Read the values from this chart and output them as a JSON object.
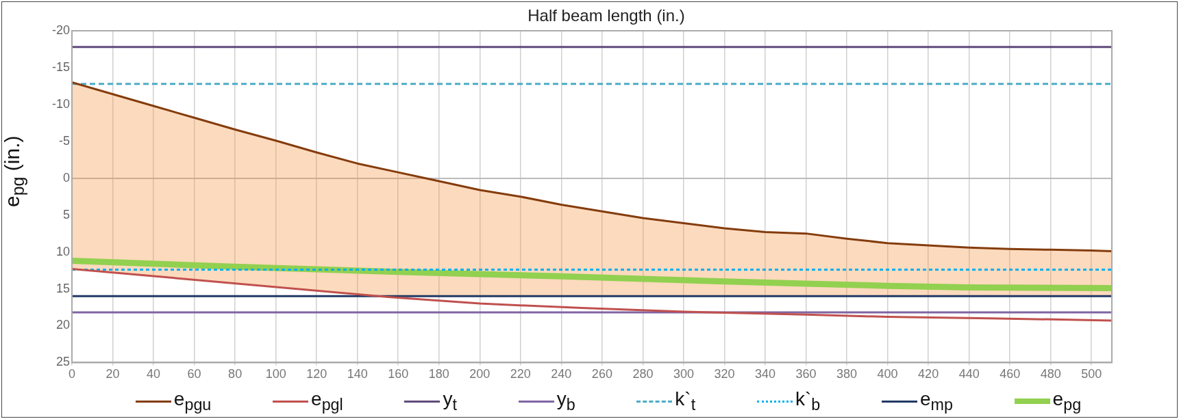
{
  "chart_data": {
    "type": "line",
    "xlabel": "Half beam length (in.)",
    "ylabel": "e$_{pg}$ (in.)",
    "xlim": [
      0,
      510
    ],
    "xticks": [
      0,
      20,
      40,
      60,
      80,
      100,
      120,
      140,
      160,
      180,
      200,
      220,
      240,
      260,
      280,
      300,
      320,
      340,
      360,
      380,
      400,
      420,
      440,
      460,
      480,
      500
    ],
    "ylim": [
      25,
      -20
    ],
    "yticks": [
      -20,
      -15,
      -10,
      -5,
      0,
      5,
      10,
      15,
      20,
      25
    ],
    "grid": "x",
    "legend": "bottom",
    "marker": "none",
    "series": [
      {
        "name": "e$_{pgu}$",
        "color": "#843c0c",
        "x": [
          0,
          20,
          40,
          60,
          80,
          100,
          120,
          140,
          160,
          180,
          200,
          220,
          240,
          260,
          280,
          300,
          320,
          340,
          360,
          380,
          400,
          420,
          440,
          460,
          480,
          500,
          510
        ],
        "values": [
          -13,
          -11.4,
          -9.8,
          -8.2,
          -6.6,
          -5.1,
          -3.5,
          -2,
          -0.8,
          0.4,
          1.6,
          2.5,
          3.6,
          4.5,
          5.4,
          6.1,
          6.8,
          7.3,
          7.5,
          8.2,
          8.8,
          9.1,
          9.4,
          9.6,
          9.7,
          9.8,
          9.9
        ],
        "upper": [
          -13,
          -11.4,
          -9.8,
          -8.2,
          -6.6,
          -5.1,
          -3.5,
          -2,
          -0.8,
          0.4,
          1.6,
          2.5,
          3.6,
          4.5,
          5.4,
          6.1,
          6.8,
          7.3,
          7.5,
          8.2,
          8.8,
          9.1,
          9.4,
          9.6,
          9.7,
          9.8,
          9.9
        ],
        "lower": [
          12.3,
          12.8,
          13.3,
          13.8,
          14.3,
          14.8,
          15.2,
          15.7,
          16,
          16,
          16,
          16,
          16,
          16,
          16,
          16,
          16,
          16,
          16,
          16,
          16,
          16,
          16,
          16,
          16,
          16,
          16
        ]
      },
      {
        "name": "e$_{pgl}$",
        "color": "#c0504d",
        "x": [
          0,
          155,
          200,
          250,
          300,
          360,
          400,
          450,
          510
        ],
        "values": [
          12.3,
          16.1,
          17,
          17.6,
          18.1,
          18.5,
          18.8,
          19,
          19.3
        ]
      },
      {
        "name": "y$_{t}$",
        "color": "#604a7b",
        "x": [
          0,
          510
        ],
        "values": [
          -17.8,
          -17.8
        ]
      },
      {
        "name": "y$_{b}$",
        "color": "#8064a2",
        "x": [
          0,
          510
        ],
        "values": [
          18.2,
          18.2
        ]
      },
      {
        "name": "k`$_{t}$",
        "color": "#4bacc6",
        "line_style": "dashed",
        "x": [
          0,
          510
        ],
        "values": [
          -12.8,
          -12.8
        ]
      },
      {
        "name": "k`$_{b}$",
        "color": "#00b0f0",
        "line_style": "dotted",
        "x": [
          0,
          510
        ],
        "values": [
          12.4,
          12.4
        ]
      },
      {
        "name": "e$_{mp}$",
        "color": "#203864",
        "x": [
          0,
          510
        ],
        "values": [
          16,
          16
        ]
      },
      {
        "name": "e$_{pg}$",
        "color": "#92d050",
        "x": [
          0,
          80,
          160,
          240,
          320,
          360,
          400,
          440,
          510
        ],
        "values": [
          11.2,
          12,
          12.7,
          13.3,
          14,
          14.3,
          14.6,
          14.8,
          14.9
        ]
      }
    ]
  }
}
